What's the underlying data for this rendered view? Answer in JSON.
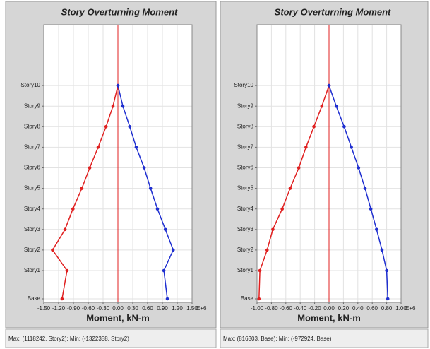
{
  "chart_data": [
    {
      "type": "line",
      "title": "Story Overturning Moment",
      "x_label": "Moment, kN-m",
      "x_exponent": "E+6",
      "categories": [
        "Base",
        "Story1",
        "Story2",
        "Story3",
        "Story4",
        "Story5",
        "Story6",
        "Story7",
        "Story8",
        "Story9",
        "Story10"
      ],
      "series": [
        {
          "color": "#e02020",
          "values": [
            -1.13,
            -1.03,
            -1.322,
            -1.07,
            -0.91,
            -0.73,
            -0.57,
            -0.4,
            -0.24,
            -0.1,
            0
          ]
        },
        {
          "color": "#1f2fd0",
          "values": [
            1.0,
            0.93,
            1.118,
            0.96,
            0.8,
            0.66,
            0.53,
            0.37,
            0.24,
            0.1,
            0
          ]
        }
      ],
      "xlim": [
        -1.5,
        1.5
      ],
      "xticks": [
        {
          "value": -1.5,
          "label": "-1.50"
        },
        {
          "value": -1.2,
          "label": "-1.20"
        },
        {
          "value": -0.9,
          "label": "-0.90"
        },
        {
          "value": -0.6,
          "label": "-0.60"
        },
        {
          "value": -0.3,
          "label": "-0.30"
        },
        {
          "value": 0,
          "label": "0.00"
        },
        {
          "value": 0.3,
          "label": "0.30"
        },
        {
          "value": 0.6,
          "label": "0.60"
        },
        {
          "value": 0.9,
          "label": "0.90"
        },
        {
          "value": 1.2,
          "label": "1.20"
        },
        {
          "value": 1.5,
          "label": "1.50"
        }
      ],
      "grid": true,
      "footer": "Max: (1118242, Story2);  Min: (-1322358, Story2)"
    },
    {
      "type": "line",
      "title": "Story Overturning Moment",
      "x_label": "Moment, kN-m",
      "x_exponent": "E+6",
      "categories": [
        "Base",
        "Story1",
        "Story2",
        "Story3",
        "Story4",
        "Story5",
        "Story6",
        "Story7",
        "Story8",
        "Story9",
        "Story10"
      ],
      "series": [
        {
          "color": "#e02020",
          "values": [
            -0.973,
            -0.96,
            -0.86,
            -0.78,
            -0.65,
            -0.54,
            -0.42,
            -0.32,
            -0.21,
            -0.1,
            0
          ]
        },
        {
          "color": "#1f2fd0",
          "values": [
            0.816,
            0.8,
            0.735,
            0.66,
            0.58,
            0.5,
            0.41,
            0.31,
            0.21,
            0.1,
            0
          ]
        }
      ],
      "xlim": [
        -1.0,
        1.0
      ],
      "xticks": [
        {
          "value": -1.0,
          "label": "-1.00"
        },
        {
          "value": -0.8,
          "label": "-0.80"
        },
        {
          "value": -0.6,
          "label": "-0.60"
        },
        {
          "value": -0.4,
          "label": "-0.40"
        },
        {
          "value": -0.2,
          "label": "-0.20"
        },
        {
          "value": 0,
          "label": "0.00"
        },
        {
          "value": 0.2,
          "label": "0.20"
        },
        {
          "value": 0.4,
          "label": "0.40"
        },
        {
          "value": 0.6,
          "label": "0.60"
        },
        {
          "value": 0.8,
          "label": "0.80"
        },
        {
          "value": 1.0,
          "label": "1.00"
        }
      ],
      "grid": true,
      "footer": "Max: (816303, Base);  Min: (-972924, Base)"
    }
  ]
}
